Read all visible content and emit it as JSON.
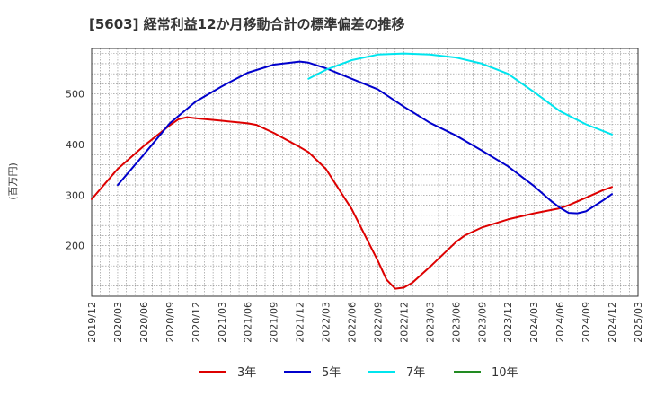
{
  "chart_data": {
    "type": "line",
    "title": "[5603]  経常利益12か月移動合計の標準偏差の推移",
    "ylabel": "(百万円)",
    "xlabel": "",
    "ylim": [
      100,
      590
    ],
    "yticks": [
      200,
      300,
      400,
      500
    ],
    "xticks": [
      "2019/12",
      "2020/03",
      "2020/06",
      "2020/09",
      "2020/12",
      "2021/03",
      "2021/06",
      "2021/09",
      "2021/12",
      "2022/03",
      "2022/06",
      "2022/09",
      "2022/12",
      "2023/03",
      "2023/06",
      "2023/09",
      "2023/12",
      "2024/03",
      "2024/06",
      "2024/09",
      "2024/12",
      "2025/03"
    ],
    "grid": true,
    "legend_position": "bottom",
    "series": [
      {
        "name": "3年",
        "color": "#dd0000",
        "x": [
          "2019/12",
          "2020/03",
          "2020/06",
          "2020/09",
          "2020/10",
          "2020/11",
          "2020/12",
          "2021/03",
          "2021/06",
          "2021/07",
          "2021/09",
          "2021/12",
          "2022/01",
          "2022/03",
          "2022/06",
          "2022/09",
          "2022/10",
          "2022/11",
          "2022/12",
          "2023/01",
          "2023/03",
          "2023/06",
          "2023/07",
          "2023/09",
          "2023/12",
          "2024/03",
          "2024/06",
          "2024/07",
          "2024/09",
          "2024/11",
          "2024/12"
        ],
        "values": [
          292,
          352,
          397,
          438,
          450,
          454,
          452,
          447,
          442,
          439,
          423,
          395,
          385,
          352,
          272,
          170,
          133,
          115,
          117,
          127,
          158,
          207,
          220,
          236,
          252,
          264,
          274,
          280,
          295,
          310,
          316
        ]
      },
      {
        "name": "5年",
        "color": "#0000cc",
        "x": [
          "2020/03",
          "2020/06",
          "2020/09",
          "2020/12",
          "2021/03",
          "2021/06",
          "2021/09",
          "2021/12",
          "2022/01",
          "2022/03",
          "2022/06",
          "2022/09",
          "2022/12",
          "2023/03",
          "2023/06",
          "2023/09",
          "2023/12",
          "2024/03",
          "2024/05",
          "2024/06",
          "2024/07",
          "2024/08",
          "2024/09",
          "2024/11",
          "2024/12"
        ],
        "values": [
          320,
          380,
          442,
          485,
          515,
          542,
          558,
          564,
          562,
          551,
          530,
          509,
          475,
          443,
          418,
          388,
          357,
          318,
          288,
          275,
          265,
          264,
          268,
          290,
          302
        ]
      },
      {
        "name": "7年",
        "color": "#00e5ee",
        "x": [
          "2022/01",
          "2022/03",
          "2022/06",
          "2022/09",
          "2022/12",
          "2023/03",
          "2023/06",
          "2023/09",
          "2023/12",
          "2024/03",
          "2024/06",
          "2024/09",
          "2024/12"
        ],
        "values": [
          530,
          548,
          567,
          578,
          580,
          578,
          572,
          560,
          540,
          504,
          466,
          440,
          420
        ]
      },
      {
        "name": "10年",
        "color": "#228b22",
        "x": [],
        "values": []
      }
    ]
  }
}
